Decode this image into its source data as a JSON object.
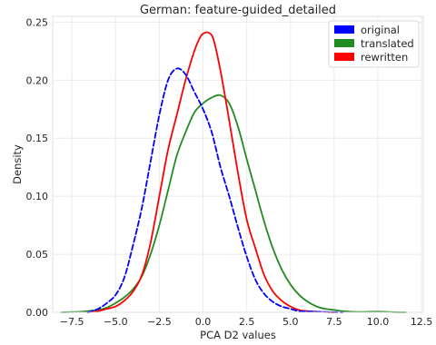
{
  "chart_data": {
    "type": "line",
    "title": "German: feature-guided_detailed",
    "xlabel": "PCA D2 values",
    "ylabel": "Density",
    "xlim": [
      -8.6,
      12.6
    ],
    "ylim": [
      0,
      0.255
    ],
    "xticks": [
      -7.5,
      -5.0,
      -2.5,
      0.0,
      2.5,
      5.0,
      7.5,
      10.0,
      12.5
    ],
    "xtick_labels": [
      "−7.5",
      "−5.0",
      "−2.5",
      "0.0",
      "2.5",
      "5.0",
      "7.5",
      "10.0",
      "12.5"
    ],
    "yticks": [
      0.0,
      0.05,
      0.1,
      0.15,
      0.2,
      0.25
    ],
    "ytick_labels": [
      "0.00",
      "0.05",
      "0.10",
      "0.15",
      "0.20",
      "0.25"
    ],
    "grid": true,
    "legend_position": "top-right",
    "series": [
      {
        "name": "original",
        "color": "#0000ff",
        "dashed": true,
        "x": [
          -6.6,
          -6.0,
          -5.5,
          -5.0,
          -4.5,
          -4.0,
          -3.5,
          -3.0,
          -2.5,
          -2.0,
          -1.5,
          -1.0,
          -0.5,
          0.0,
          0.5,
          1.0,
          1.5,
          2.0,
          2.5,
          3.0,
          3.5,
          4.0,
          4.5,
          5.0,
          5.5,
          6.0,
          6.5,
          7.0,
          7.5,
          8.0
        ],
        "y": [
          0.0,
          0.003,
          0.008,
          0.015,
          0.03,
          0.058,
          0.09,
          0.13,
          0.17,
          0.2,
          0.21,
          0.205,
          0.19,
          0.175,
          0.155,
          0.125,
          0.1,
          0.073,
          0.048,
          0.028,
          0.016,
          0.009,
          0.005,
          0.003,
          0.001,
          0.0008,
          0.0005,
          0.0003,
          0.0001,
          0.0
        ]
      },
      {
        "name": "translated",
        "color": "#228b22",
        "dashed": false,
        "x": [
          -8.1,
          -7.0,
          -6.0,
          -5.5,
          -5.0,
          -4.5,
          -4.0,
          -3.5,
          -3.0,
          -2.5,
          -2.0,
          -1.5,
          -1.0,
          -0.5,
          0.0,
          0.5,
          1.0,
          1.5,
          2.0,
          2.5,
          3.0,
          3.5,
          4.0,
          4.5,
          5.0,
          5.5,
          6.0,
          6.5,
          7.0,
          7.5,
          8.0,
          9.0,
          10.0,
          11.0,
          11.6
        ],
        "y": [
          0.0,
          0.0005,
          0.002,
          0.004,
          0.008,
          0.013,
          0.02,
          0.031,
          0.05,
          0.075,
          0.105,
          0.135,
          0.155,
          0.172,
          0.18,
          0.185,
          0.187,
          0.18,
          0.16,
          0.132,
          0.105,
          0.078,
          0.055,
          0.037,
          0.024,
          0.015,
          0.009,
          0.005,
          0.003,
          0.002,
          0.001,
          0.0003,
          0.0006,
          0.0001,
          0.0
        ]
      },
      {
        "name": "rewritten",
        "color": "#ff0000",
        "dashed": false,
        "x": [
          -6.6,
          -6.0,
          -5.5,
          -5.0,
          -4.5,
          -4.0,
          -3.5,
          -3.0,
          -2.5,
          -2.0,
          -1.5,
          -1.0,
          -0.5,
          -0.2,
          0.0,
          0.3,
          0.6,
          1.0,
          1.5,
          2.0,
          2.5,
          3.0,
          3.5,
          4.0,
          4.5,
          5.0,
          5.5,
          6.0,
          6.5,
          7.0,
          7.5
        ],
        "y": [
          0.0,
          0.001,
          0.003,
          0.005,
          0.01,
          0.018,
          0.032,
          0.06,
          0.1,
          0.14,
          0.17,
          0.2,
          0.225,
          0.236,
          0.24,
          0.241,
          0.235,
          0.208,
          0.165,
          0.12,
          0.08,
          0.055,
          0.032,
          0.018,
          0.01,
          0.005,
          0.002,
          0.001,
          0.0005,
          0.0002,
          0.0
        ]
      }
    ]
  }
}
